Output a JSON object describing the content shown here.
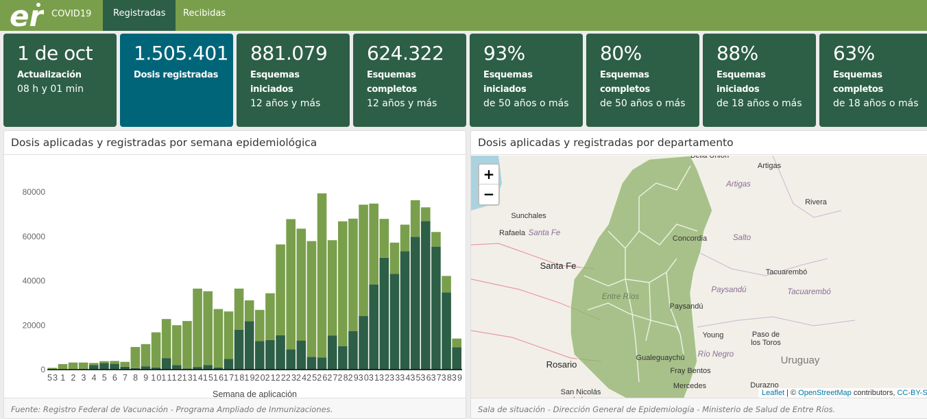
{
  "nav": {
    "logo_text": "er",
    "brand": "COVID19",
    "tabs": [
      {
        "label": "Registradas",
        "active": true
      },
      {
        "label": "Recibidas",
        "active": false
      }
    ],
    "color": "#7a9f4c",
    "active_color": "#2d5e46"
  },
  "cards": [
    {
      "value": "1 de oct",
      "label": "Actualización",
      "sub": "08 h y 01 min"
    },
    {
      "value": "1.505.401",
      "label": "Dosis registradas",
      "sub": ""
    },
    {
      "value": "881.079",
      "label": "Esquemas iniciados",
      "sub": "12 años y más"
    },
    {
      "value": "624.322",
      "label": "Esquemas completos",
      "sub": "12 años y más"
    },
    {
      "value": "93%",
      "label": "Esquemas iniciados",
      "sub": "de 50 años o más"
    },
    {
      "value": "80%",
      "label": "Esquemas completos",
      "sub": "de 50 años o más"
    },
    {
      "value": "88%",
      "label": "Esquemas iniciados",
      "sub": "de 18 años o más"
    },
    {
      "value": "63%",
      "label": "Esquemas completos",
      "sub": "de 18 años o más"
    }
  ],
  "chart_panel": {
    "title": "Dosis aplicadas y registradas por semana epidemiológica",
    "footer": "Fuente: Registro Federal de Vacunación - Programa Ampliado de Inmunizaciones."
  },
  "chart_data": {
    "type": "bar",
    "stacked": true,
    "xlabel": "Semana de aplicación",
    "ylabel": "",
    "ylim": [
      0,
      80000
    ],
    "yticks": [
      0,
      20000,
      40000,
      60000,
      80000
    ],
    "grid": false,
    "categories": [
      "53",
      "1",
      "2",
      "3",
      "4",
      "5",
      "6",
      "7",
      "8",
      "9",
      "10",
      "11",
      "12",
      "13",
      "14",
      "15",
      "16",
      "17",
      "18",
      "19",
      "20",
      "21",
      "22",
      "23",
      "24",
      "25",
      "26",
      "27",
      "28",
      "29",
      "30",
      "31",
      "32",
      "33",
      "34",
      "35",
      "36",
      "37",
      "38",
      "39"
    ],
    "series": [
      {
        "color": "#2d5e46",
        "values": [
          0,
          0,
          0,
          400,
          2100,
          3000,
          2600,
          1300,
          700,
          1500,
          1000,
          5200,
          2000,
          500,
          1200,
          2100,
          1000,
          4800,
          18000,
          21800,
          12900,
          13300,
          15500,
          9100,
          13100,
          5700,
          5500,
          15400,
          10600,
          17400,
          24200,
          38400,
          50400,
          43100,
          53300,
          59800,
          66900,
          55400,
          34800,
          10100
        ]
      },
      {
        "color": "#7a9f4c",
        "values": [
          800,
          2500,
          3200,
          2800,
          900,
          800,
          1300,
          2200,
          9500,
          10000,
          15800,
          17600,
          18000,
          21400,
          35300,
          33200,
          26300,
          21400,
          18500,
          9400,
          14000,
          21100,
          40900,
          58700,
          50400,
          52200,
          73900,
          42900,
          56200,
          50600,
          50100,
          36400,
          17500,
          14100,
          12000,
          16500,
          6200,
          6600,
          7400,
          3900
        ]
      }
    ]
  },
  "map_panel": {
    "title": "Dosis aplicadas y registradas por departamento",
    "footer": "Sala de situación - Dirección General de Epidemiología - Ministerio de Salud de Entre Ríos.",
    "zoom_in": "+",
    "zoom_out": "−",
    "attribution": {
      "leaflet": "Leaflet",
      "sep": " | © ",
      "osm": "OpenStreetMap",
      "contrib": " contributors, ",
      "license": "CC-BY-SA"
    },
    "labels": [
      {
        "t": "Bella Unión",
        "k": "city"
      },
      {
        "t": "Artigas",
        "k": "city"
      },
      {
        "t": "Artigas",
        "k": "region"
      },
      {
        "t": "Rivera",
        "k": "city"
      },
      {
        "t": "Sunchales",
        "k": "city"
      },
      {
        "t": "Rafaela",
        "k": "city"
      },
      {
        "t": "Santa Fe",
        "k": "region"
      },
      {
        "t": "Santa Fe",
        "k": "bigcity"
      },
      {
        "t": "Concordia",
        "k": "city"
      },
      {
        "t": "Salto",
        "k": "region"
      },
      {
        "t": "Tacuarembó",
        "k": "city"
      },
      {
        "t": "Paysandú",
        "k": "region"
      },
      {
        "t": "Tacuarembó",
        "k": "region"
      },
      {
        "t": "Entre Ríos",
        "k": "region"
      },
      {
        "t": "Paysandú",
        "k": "city"
      },
      {
        "t": "Young",
        "k": "city"
      },
      {
        "t": "Paso de",
        "k": "city"
      },
      {
        "t": "los Toros",
        "k": "city"
      },
      {
        "t": "Río Negro",
        "k": "region"
      },
      {
        "t": "Uruguay",
        "k": "country"
      },
      {
        "t": "Rosario",
        "k": "bigcity"
      },
      {
        "t": "Gualeguaychú",
        "k": "city"
      },
      {
        "t": "Fray Bentos",
        "k": "city"
      },
      {
        "t": "Mercedes",
        "k": "city"
      },
      {
        "t": "Durazno",
        "k": "city"
      },
      {
        "t": "San Nicolás",
        "k": "city"
      },
      {
        "t": "de los",
        "k": "city"
      }
    ]
  }
}
